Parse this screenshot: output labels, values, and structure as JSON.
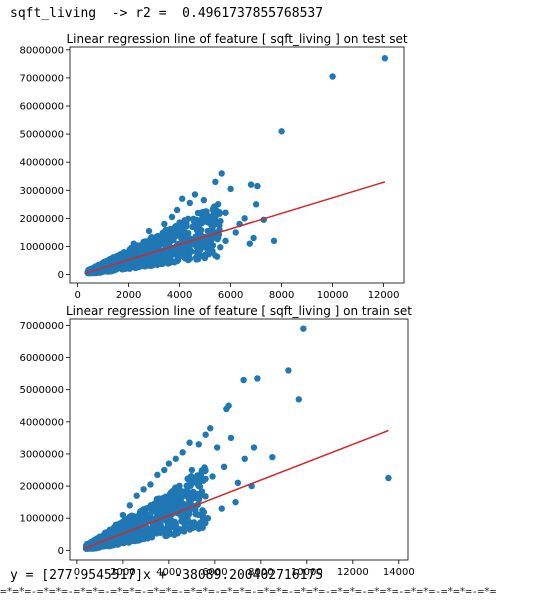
{
  "output": {
    "r2_line": "sqft_living  -> r2 =  0.4961737855768537",
    "equation_line": "y = [277.9545517]x + -38089.200402716175",
    "separator": "=*=*=-=*=*=-=*=*=-=*=*=-=*=*=-=*=*=-=*=*=-=*=*=-=*=*=-=*=*=-=*=*=-=*=*=-=*=*=-=*="
  },
  "colors": {
    "points": "#1f77b4",
    "line": "#d62728"
  },
  "chart_data": [
    {
      "type": "scatter",
      "title": "Linear regression line of feature [ sqft_living ] on test set",
      "xlim": [
        -300,
        12800
      ],
      "ylim": [
        -300000,
        8100000
      ],
      "xticks": [
        0,
        2000,
        4000,
        6000,
        8000,
        10000,
        12000
      ],
      "yticks": [
        0,
        1000000,
        2000000,
        3000000,
        4000000,
        5000000,
        6000000,
        7000000,
        8000000
      ],
      "points": [
        [
          12050,
          7700000
        ],
        [
          10000,
          7050000
        ],
        [
          8000,
          5100000
        ],
        [
          5650,
          3600000
        ],
        [
          5400,
          3300000
        ],
        [
          6000,
          3050000
        ],
        [
          6800,
          3200000
        ],
        [
          7050,
          3150000
        ],
        [
          7000,
          2500000
        ],
        [
          7300,
          1950000
        ],
        [
          6550,
          2000000
        ],
        [
          6350,
          1800000
        ],
        [
          5300,
          2300000
        ],
        [
          4850,
          2200000
        ],
        [
          4400,
          2550000
        ],
        [
          4100,
          2700000
        ],
        [
          3900,
          2300000
        ],
        [
          3700,
          2050000
        ],
        [
          3400,
          1800000
        ],
        [
          4600,
          2850000
        ],
        [
          4950,
          2650000
        ],
        [
          4500,
          1700000
        ],
        [
          4200,
          1500000
        ],
        [
          5600,
          1900000
        ],
        [
          5800,
          2200000
        ],
        [
          6200,
          1500000
        ],
        [
          6900,
          1300000
        ],
        [
          7700,
          1200000
        ],
        [
          6750,
          1100000
        ],
        [
          5800,
          1200000
        ],
        [
          5100,
          900000
        ],
        [
          4400,
          900000
        ],
        [
          3800,
          1400000
        ],
        [
          3000,
          1200000
        ],
        [
          2800,
          1550000
        ],
        [
          2400,
          900000
        ],
        [
          2000,
          700000
        ],
        [
          1700,
          500000
        ],
        [
          1300,
          350000
        ],
        [
          900,
          250000
        ],
        [
          700,
          180000
        ],
        [
          500,
          140000
        ],
        [
          1100,
          300000
        ],
        [
          1500,
          450000
        ],
        [
          2200,
          1100000
        ],
        [
          3300,
          600000
        ],
        [
          4000,
          700000
        ],
        [
          4800,
          1300000
        ],
        [
          3600,
          1000000
        ],
        [
          2600,
          400000
        ]
      ],
      "fit_line": {
        "x": [
          300,
          12050
        ],
        "y": [
          50000,
          3300000
        ]
      }
    },
    {
      "type": "scatter",
      "title": "Linear regression line of feature [ sqft_living ] on train set",
      "xlim": [
        -300,
        14400
      ],
      "ylim": [
        -300000,
        7200000
      ],
      "xticks": [
        0,
        2000,
        4000,
        6000,
        8000,
        10000,
        12000,
        14000
      ],
      "yticks": [
        0,
        1000000,
        2000000,
        3000000,
        4000000,
        5000000,
        6000000,
        7000000
      ],
      "points": [
        [
          9850,
          6900000
        ],
        [
          9200,
          5600000
        ],
        [
          7850,
          5350000
        ],
        [
          7250,
          5300000
        ],
        [
          9650,
          4700000
        ],
        [
          6600,
          4500000
        ],
        [
          6500,
          4400000
        ],
        [
          5800,
          3800000
        ],
        [
          5600,
          3600000
        ],
        [
          13550,
          2250000
        ],
        [
          8500,
          2900000
        ],
        [
          7700,
          3200000
        ],
        [
          7300,
          2850000
        ],
        [
          6700,
          3500000
        ],
        [
          6100,
          3200000
        ],
        [
          5300,
          3300000
        ],
        [
          4900,
          3350000
        ],
        [
          4600,
          3050000
        ],
        [
          4300,
          2850000
        ],
        [
          4000,
          2700000
        ],
        [
          3800,
          2500000
        ],
        [
          3500,
          2350000
        ],
        [
          3200,
          2050000
        ],
        [
          2900,
          1900000
        ],
        [
          2600,
          1700000
        ],
        [
          2300,
          1400000
        ],
        [
          2000,
          1100000
        ],
        [
          1700,
          800000
        ],
        [
          1400,
          600000
        ],
        [
          1100,
          420000
        ],
        [
          800,
          300000
        ],
        [
          600,
          250000
        ],
        [
          450,
          200000
        ],
        [
          7000,
          2100000
        ],
        [
          7600,
          2000000
        ],
        [
          6900,
          1500000
        ],
        [
          6300,
          1300000
        ],
        [
          5700,
          1000000
        ],
        [
          5200,
          800000
        ],
        [
          4600,
          1200000
        ],
        [
          4100,
          900000
        ],
        [
          3500,
          700000
        ],
        [
          2900,
          500000
        ],
        [
          5900,
          2300000
        ],
        [
          5000,
          2500000
        ],
        [
          6400,
          2600000
        ],
        [
          4400,
          1800000
        ],
        [
          3700,
          1500000
        ],
        [
          2500,
          1000000
        ],
        [
          3000,
          1300000
        ]
      ],
      "fit_line": {
        "x": [
          300,
          13550
        ],
        "y": [
          50000,
          3730000
        ]
      }
    }
  ]
}
